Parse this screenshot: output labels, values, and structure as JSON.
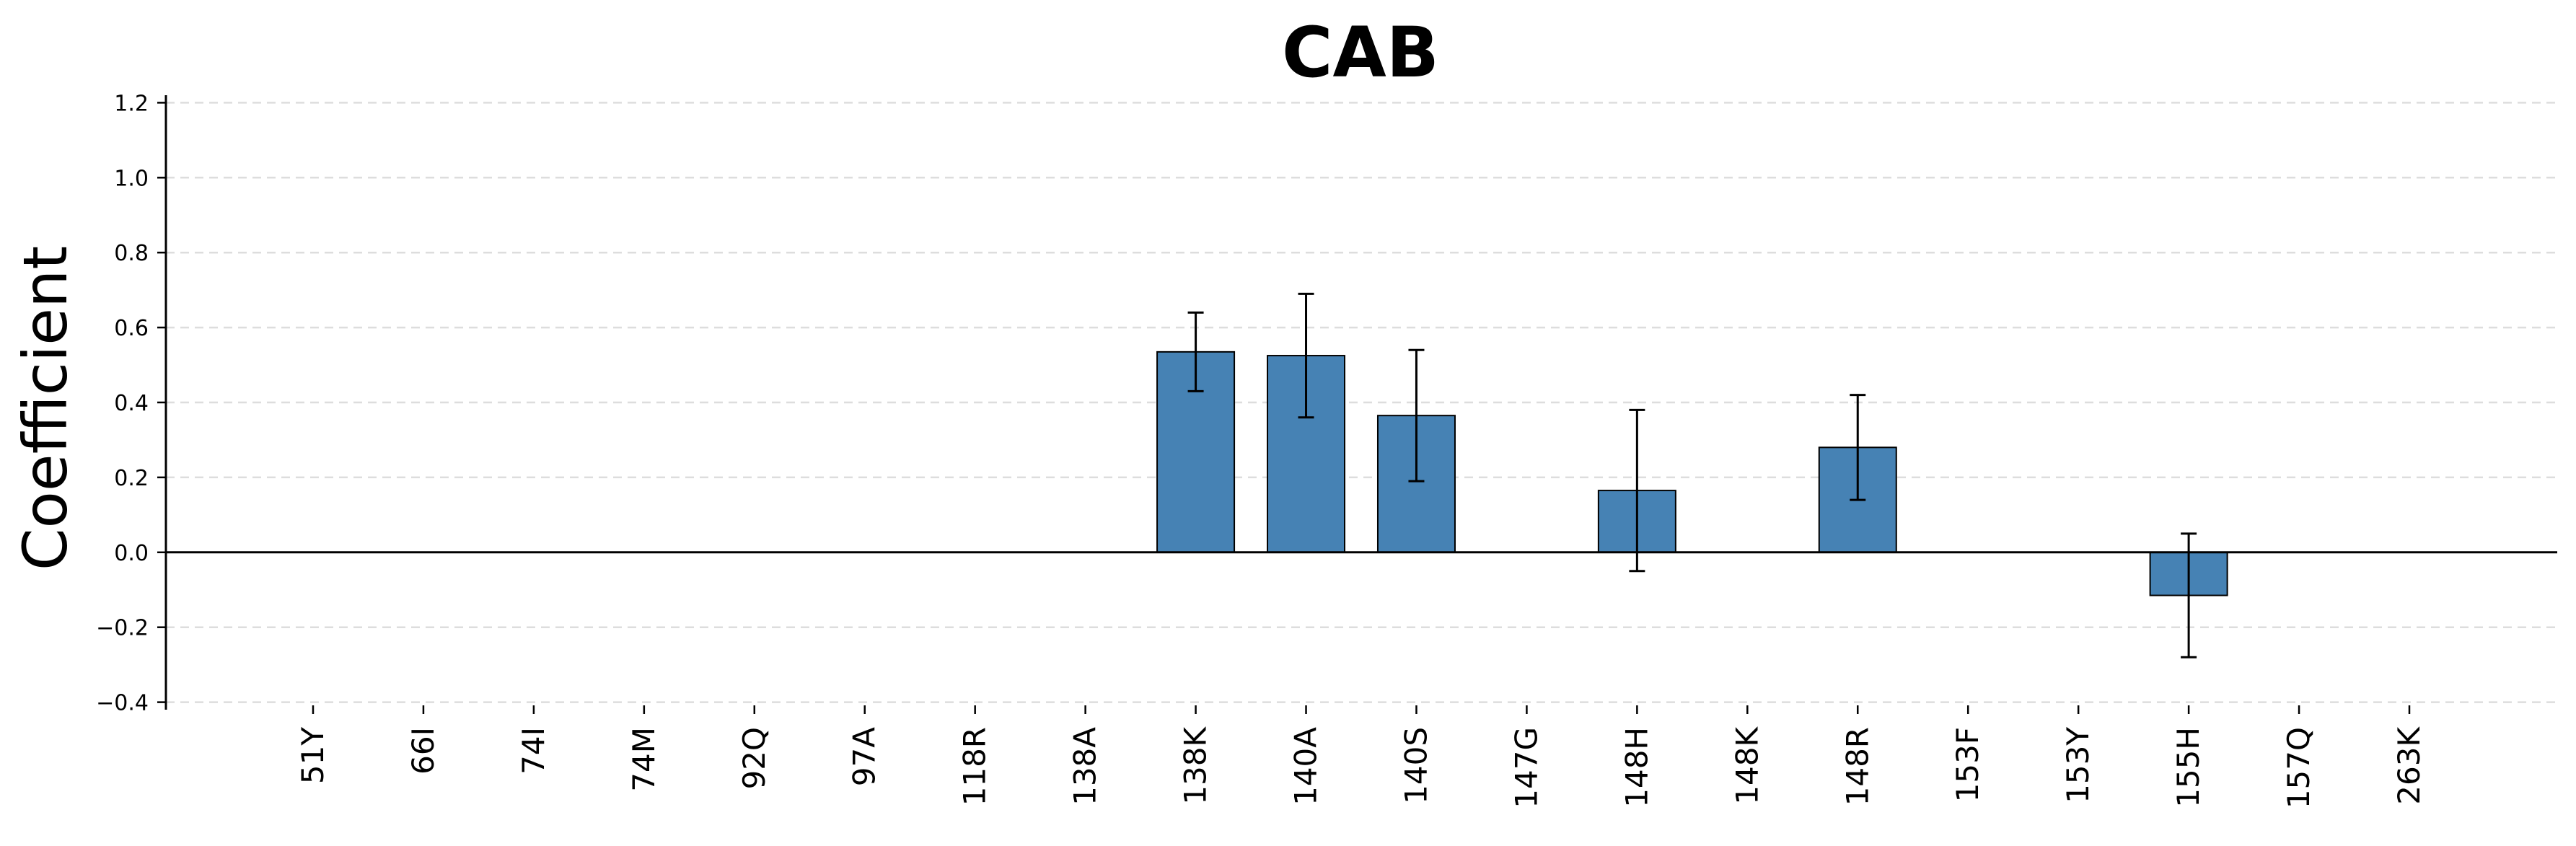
{
  "chart_data": {
    "type": "bar",
    "title": "CAB",
    "xlabel": "",
    "ylabel": "Coefficient",
    "ylim": [
      -0.42,
      1.22
    ],
    "yticks": [
      -0.4,
      -0.2,
      0.0,
      0.2,
      0.4,
      0.6,
      0.8,
      1.0,
      1.2
    ],
    "ytick_labels": [
      "−0.4",
      "−0.2",
      "0.0",
      "0.2",
      "0.4",
      "0.6",
      "0.8",
      "1.0",
      "1.2"
    ],
    "grid": "horizontal dashed",
    "categories": [
      "51Y",
      "66I",
      "74I",
      "74M",
      "92Q",
      "97A",
      "118R",
      "138A",
      "138K",
      "140A",
      "140S",
      "147G",
      "148H",
      "148K",
      "148R",
      "153F",
      "153Y",
      "155H",
      "157Q",
      "263K"
    ],
    "values": [
      0,
      0,
      0,
      0,
      0,
      0,
      0,
      0,
      0.535,
      0.525,
      0.365,
      0,
      0.165,
      0,
      0.28,
      0,
      0,
      -0.115,
      0,
      0
    ],
    "errors": [
      0,
      0,
      0,
      0,
      0,
      0,
      0,
      0,
      0.105,
      0.165,
      0.175,
      0,
      0.215,
      0,
      0.14,
      0,
      0,
      0.165,
      0,
      0
    ],
    "bar_color": "#4682b4"
  }
}
